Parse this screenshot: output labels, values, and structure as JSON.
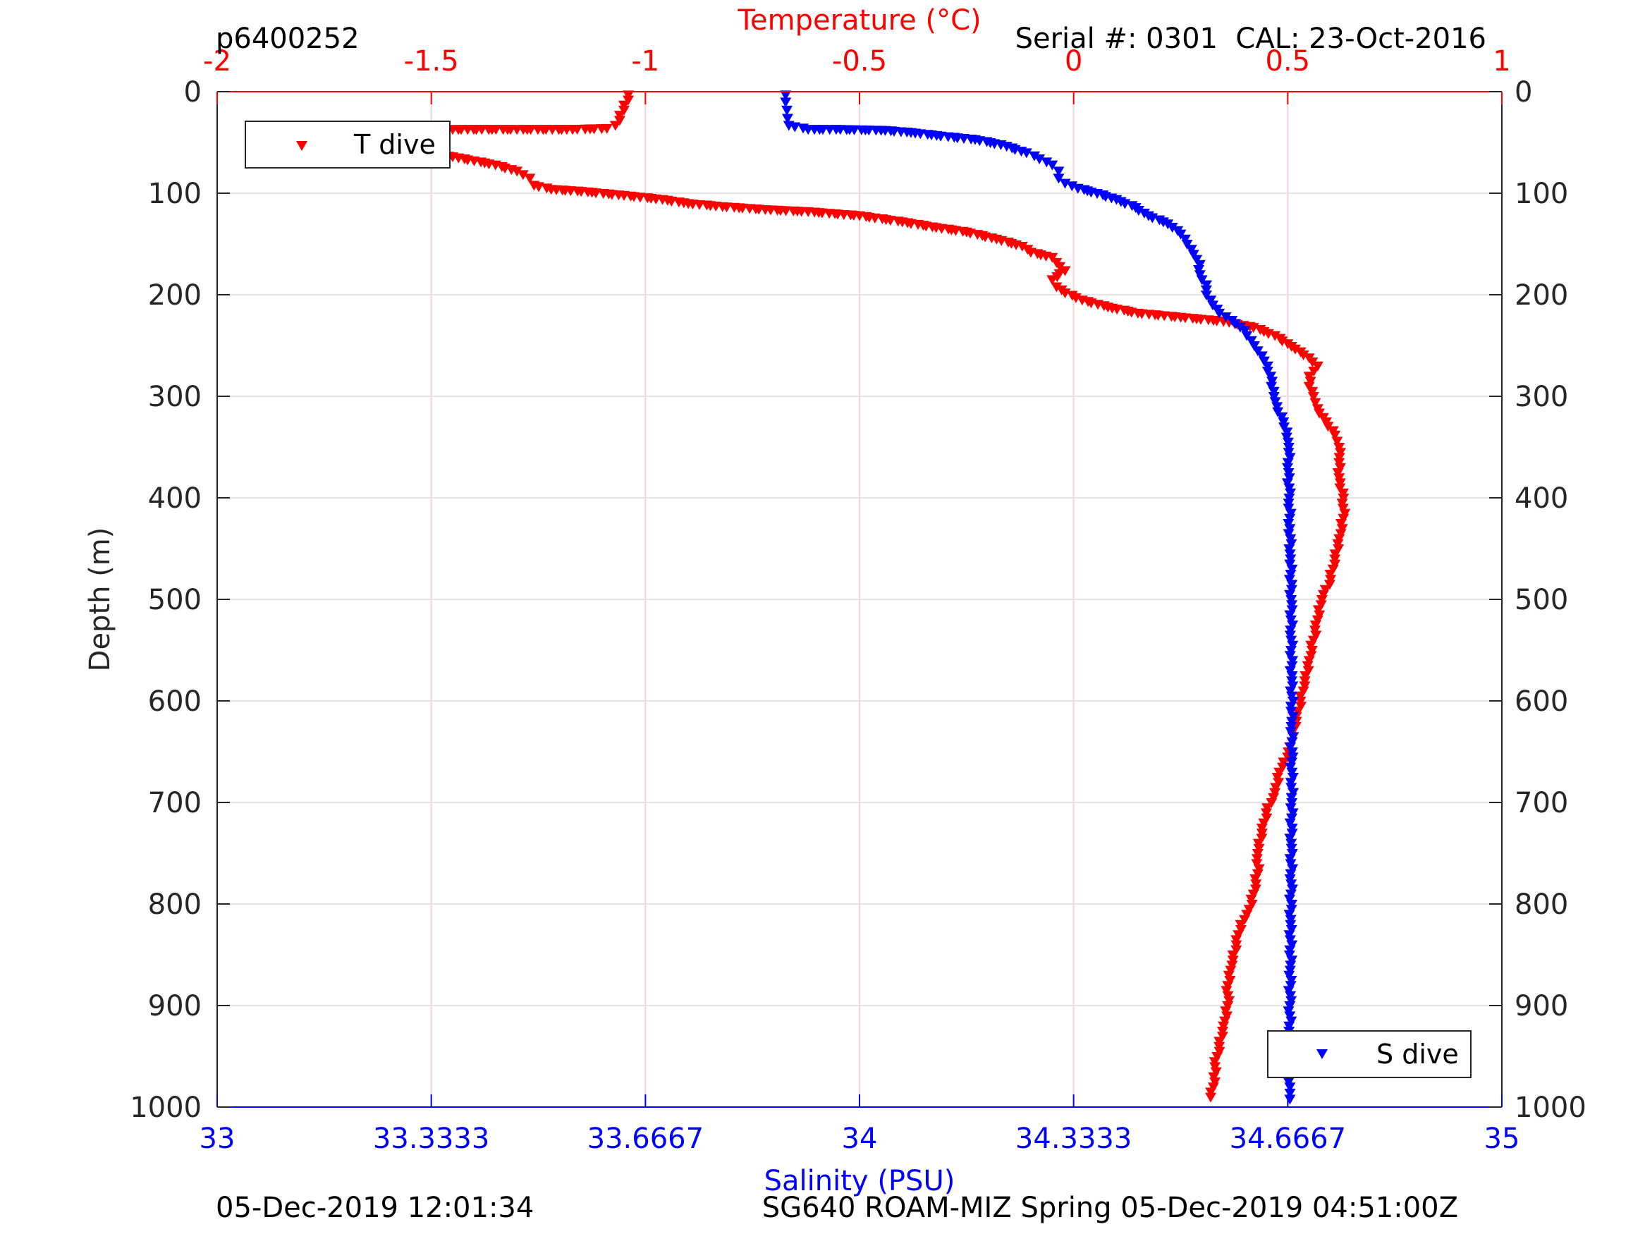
{
  "header": {
    "left": "p6400252",
    "right": "Serial #: 0301  CAL: 23-Oct-2016"
  },
  "footer": {
    "left": "05-Dec-2019 12:01:34",
    "right": "SG640 ROAM-MIZ Spring 05-Dec-2019 04:51:00Z"
  },
  "chart_data": {
    "type": "scatter",
    "top_axis": {
      "label": "Temperature (°C)",
      "range": [
        -2,
        1
      ],
      "ticks": [
        -2,
        -1.5,
        -1,
        -0.5,
        0,
        0.5,
        1
      ],
      "tick_labels": [
        "-2",
        "-1.5",
        "-1",
        "-0.5",
        "0",
        "0.5",
        "1"
      ],
      "color": "#ff0000"
    },
    "bottom_axis": {
      "label": "Salinity (PSU)",
      "range": [
        33,
        35
      ],
      "ticks": [
        33,
        33.3333,
        33.6667,
        34,
        34.3333,
        34.6667,
        35
      ],
      "tick_labels": [
        "33",
        "33.3333",
        "33.6667",
        "34",
        "34.3333",
        "34.6667",
        "35"
      ],
      "color": "#0000ff"
    },
    "y_axis": {
      "label": "Depth (m)",
      "range": [
        0,
        1000
      ],
      "reversed": true,
      "ticks": [
        0,
        100,
        200,
        300,
        400,
        500,
        600,
        700,
        800,
        900,
        1000
      ],
      "tick_labels": [
        "0",
        "100",
        "200",
        "300",
        "400",
        "500",
        "600",
        "700",
        "800",
        "900",
        "1000"
      ]
    },
    "grid": true,
    "marker": "triangle-down",
    "series": [
      {
        "name": "T dive",
        "axis": "top",
        "color": "#ff0000",
        "legend_position": "top-left",
        "points": [
          [
            -1.04,
            3
          ],
          [
            -1.04,
            8
          ],
          [
            -1.05,
            13
          ],
          [
            -1.05,
            18
          ],
          [
            -1.06,
            23
          ],
          [
            -1.06,
            28
          ],
          [
            -1.07,
            33
          ],
          [
            -1.09,
            36
          ],
          [
            -1.17,
            37
          ],
          [
            -1.3,
            37
          ],
          [
            -1.45,
            37
          ],
          [
            -1.5,
            38
          ],
          [
            -1.55,
            40
          ],
          [
            -1.6,
            45
          ],
          [
            -1.6,
            52
          ],
          [
            -1.58,
            57
          ],
          [
            -1.52,
            60
          ],
          [
            -1.45,
            64
          ],
          [
            -1.4,
            68
          ],
          [
            -1.35,
            72
          ],
          [
            -1.3,
            78
          ],
          [
            -1.27,
            85
          ],
          [
            -1.26,
            92
          ],
          [
            -1.22,
            96
          ],
          [
            -1.15,
            98
          ],
          [
            -1.05,
            102
          ],
          [
            -0.96,
            106
          ],
          [
            -0.9,
            110
          ],
          [
            -0.82,
            113
          ],
          [
            -0.72,
            116
          ],
          [
            -0.62,
            118
          ],
          [
            -0.5,
            122
          ],
          [
            -0.4,
            128
          ],
          [
            -0.33,
            133
          ],
          [
            -0.25,
            138
          ],
          [
            -0.18,
            145
          ],
          [
            -0.12,
            152
          ],
          [
            -0.1,
            158
          ],
          [
            -0.05,
            163
          ],
          [
            -0.04,
            168
          ],
          [
            -0.02,
            176
          ],
          [
            -0.05,
            185
          ],
          [
            -0.04,
            192
          ],
          [
            -0.02,
            198
          ],
          [
            0.02,
            205
          ],
          [
            0.08,
            212
          ],
          [
            0.15,
            218
          ],
          [
            0.25,
            222
          ],
          [
            0.35,
            226
          ],
          [
            0.42,
            232
          ],
          [
            0.47,
            240
          ],
          [
            0.5,
            248
          ],
          [
            0.53,
            256
          ],
          [
            0.55,
            262
          ],
          [
            0.57,
            270
          ],
          [
            0.55,
            280
          ],
          [
            0.55,
            290
          ],
          [
            0.56,
            300
          ],
          [
            0.57,
            312
          ],
          [
            0.59,
            325
          ],
          [
            0.61,
            338
          ],
          [
            0.62,
            350
          ],
          [
            0.62,
            365
          ],
          [
            0.62,
            380
          ],
          [
            0.63,
            400
          ],
          [
            0.63,
            420
          ],
          [
            0.62,
            440
          ],
          [
            0.61,
            460
          ],
          [
            0.6,
            480
          ],
          [
            0.58,
            500
          ],
          [
            0.57,
            520
          ],
          [
            0.56,
            540
          ],
          [
            0.55,
            560
          ],
          [
            0.54,
            580
          ],
          [
            0.53,
            600
          ],
          [
            0.52,
            620
          ],
          [
            0.51,
            640
          ],
          [
            0.5,
            655
          ],
          [
            0.48,
            670
          ],
          [
            0.47,
            690
          ],
          [
            0.45,
            710
          ],
          [
            0.44,
            730
          ],
          [
            0.43,
            750
          ],
          [
            0.43,
            770
          ],
          [
            0.42,
            790
          ],
          [
            0.41,
            805
          ],
          [
            0.39,
            820
          ],
          [
            0.38,
            840
          ],
          [
            0.37,
            860
          ],
          [
            0.36,
            880
          ],
          [
            0.36,
            900
          ],
          [
            0.35,
            920
          ],
          [
            0.34,
            940
          ],
          [
            0.33,
            960
          ],
          [
            0.33,
            975
          ],
          [
            0.32,
            990
          ]
        ]
      },
      {
        "name": "S dive",
        "axis": "bottom",
        "color": "#0000ff",
        "legend_position": "bottom-right",
        "points": [
          [
            33.885,
            3
          ],
          [
            33.885,
            10
          ],
          [
            33.887,
            18
          ],
          [
            33.888,
            26
          ],
          [
            33.89,
            33
          ],
          [
            33.92,
            37
          ],
          [
            33.97,
            37
          ],
          [
            34.04,
            38
          ],
          [
            34.08,
            40
          ],
          [
            34.12,
            43
          ],
          [
            34.18,
            47
          ],
          [
            34.22,
            52
          ],
          [
            34.26,
            60
          ],
          [
            34.28,
            66
          ],
          [
            34.3,
            72
          ],
          [
            34.31,
            78
          ],
          [
            34.31,
            85
          ],
          [
            34.32,
            90
          ],
          [
            34.34,
            95
          ],
          [
            34.37,
            100
          ],
          [
            34.4,
            106
          ],
          [
            34.43,
            114
          ],
          [
            34.45,
            122
          ],
          [
            34.48,
            130
          ],
          [
            34.5,
            140
          ],
          [
            34.51,
            150
          ],
          [
            34.52,
            160
          ],
          [
            34.53,
            170
          ],
          [
            34.53,
            180
          ],
          [
            34.54,
            190
          ],
          [
            34.54,
            200
          ],
          [
            34.55,
            210
          ],
          [
            34.56,
            218
          ],
          [
            34.58,
            225
          ],
          [
            34.6,
            235
          ],
          [
            34.61,
            245
          ],
          [
            34.62,
            255
          ],
          [
            34.63,
            265
          ],
          [
            34.64,
            280
          ],
          [
            34.645,
            295
          ],
          [
            34.65,
            310
          ],
          [
            34.66,
            325
          ],
          [
            34.665,
            340
          ],
          [
            34.668,
            355
          ],
          [
            34.668,
            375
          ],
          [
            34.669,
            400
          ],
          [
            34.67,
            430
          ],
          [
            34.671,
            460
          ],
          [
            34.672,
            500
          ],
          [
            34.672,
            540
          ],
          [
            34.673,
            580
          ],
          [
            34.673,
            620
          ],
          [
            34.673,
            660
          ],
          [
            34.673,
            700
          ],
          [
            34.672,
            740
          ],
          [
            34.672,
            780
          ],
          [
            34.671,
            820
          ],
          [
            34.671,
            860
          ],
          [
            34.67,
            900
          ],
          [
            34.67,
            940
          ],
          [
            34.67,
            980
          ],
          [
            34.67,
            992
          ]
        ]
      }
    ]
  }
}
